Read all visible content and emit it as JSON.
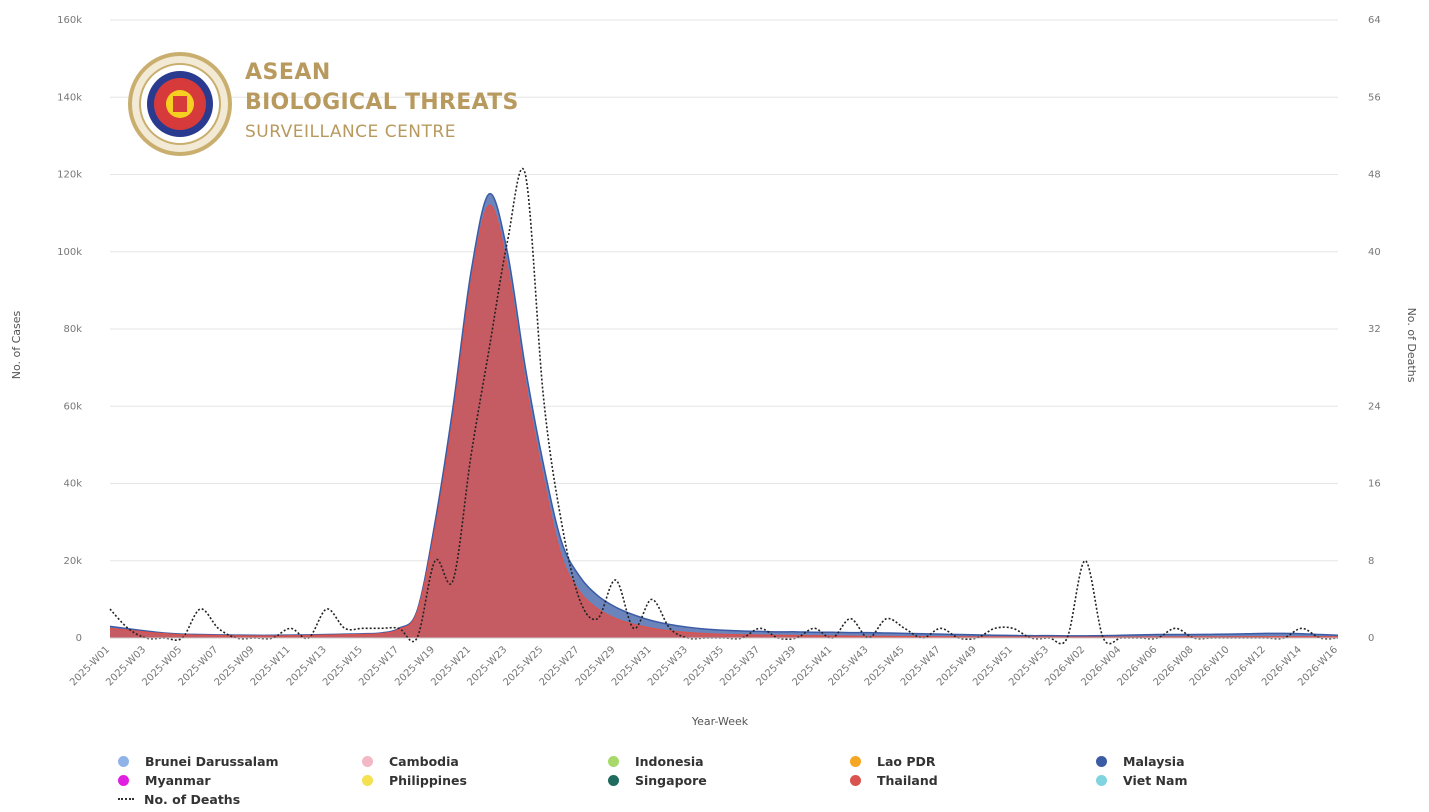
{
  "chart_data": {
    "type": "area",
    "xlabel": "Year-Week",
    "ylabel": "No. of Cases",
    "y2label": "No. of Deaths",
    "ylim": [
      0,
      160000
    ],
    "y2lim": [
      0,
      64
    ],
    "y_ticks": [
      "0",
      "20k",
      "40k",
      "60k",
      "80k",
      "100k",
      "120k",
      "140k",
      "160k"
    ],
    "y2_ticks": [
      "0",
      "8",
      "16",
      "24",
      "32",
      "40",
      "48",
      "56",
      "64"
    ],
    "grid": true,
    "legend_position": "bottom",
    "categories": [
      "2025-W01",
      "2025-W02",
      "2025-W03",
      "2025-W04",
      "2025-W05",
      "2025-W06",
      "2025-W07",
      "2025-W08",
      "2025-W09",
      "2025-W10",
      "2025-W11",
      "2025-W12",
      "2025-W13",
      "2025-W14",
      "2025-W15",
      "2025-W16",
      "2025-W17",
      "2025-W18",
      "2025-W19",
      "2025-W20",
      "2025-W21",
      "2025-W22",
      "2025-W23",
      "2025-W24",
      "2025-W25",
      "2025-W26",
      "2025-W27",
      "2025-W28",
      "2025-W29",
      "2025-W30",
      "2025-W31",
      "2025-W32",
      "2025-W33",
      "2025-W34",
      "2025-W35",
      "2025-W36",
      "2025-W37",
      "2025-W38",
      "2025-W39",
      "2025-W40",
      "2025-W41",
      "2025-W42",
      "2025-W43",
      "2025-W44",
      "2025-W45",
      "2025-W46",
      "2025-W47",
      "2025-W48",
      "2025-W49",
      "2025-W50",
      "2025-W51",
      "2025-W52",
      "2025-W53",
      "2026-W01",
      "2026-W02",
      "2026-W03",
      "2026-W04",
      "2026-W05",
      "2026-W06",
      "2026-W07",
      "2026-W08",
      "2026-W09",
      "2026-W10",
      "2026-W11",
      "2026-W12",
      "2026-W13",
      "2026-W14",
      "2026-W15",
      "2026-W16"
    ],
    "tick_labels_shown": [
      "2025-W01",
      "2025-W03",
      "2025-W05",
      "2025-W07",
      "2025-W09",
      "2025-W11",
      "2025-W13",
      "2025-W15",
      "2025-W17",
      "2025-W19",
      "2025-W21",
      "2025-W23",
      "2025-W25",
      "2025-W27",
      "2025-W29",
      "2025-W31",
      "2025-W33",
      "2025-W35",
      "2025-W37",
      "2025-W39",
      "2025-W41",
      "2025-W43",
      "2025-W45",
      "2025-W47",
      "2025-W49",
      "2025-W51",
      "2025-W53",
      "2026-W02",
      "2026-W04",
      "2026-W06",
      "2026-W08",
      "2026-W10",
      "2026-W12",
      "2026-W14",
      "2026-W16"
    ],
    "series": [
      {
        "name": "Malaysia",
        "color": "#3b5ba5",
        "axis": "cases",
        "values": [
          3000,
          2400,
          1800,
          1300,
          1000,
          900,
          800,
          750,
          700,
          700,
          750,
          800,
          900,
          1000,
          1100,
          1300,
          2500,
          7000,
          30000,
          60000,
          95000,
          115000,
          100000,
          70000,
          45000,
          25000,
          16000,
          11000,
          8000,
          6000,
          4500,
          3500,
          2800,
          2300,
          2000,
          1800,
          1700,
          1600,
          1600,
          1500,
          1500,
          1400,
          1400,
          1300,
          1200,
          1100,
          1000,
          900,
          800,
          700,
          650,
          600,
          600,
          550,
          550,
          600,
          700,
          800,
          900,
          900,
          900,
          950,
          1000,
          1100,
          1200,
          1200,
          1100,
          900,
          700
        ]
      },
      {
        "name": "Thailand",
        "color": "#d9534f",
        "axis": "cases",
        "values": [
          2500,
          2000,
          1500,
          1100,
          800,
          700,
          600,
          550,
          500,
          500,
          550,
          600,
          700,
          800,
          900,
          1100,
          2200,
          6500,
          28000,
          57000,
          92000,
          112000,
          96000,
          66000,
          41000,
          21000,
          12000,
          7500,
          5000,
          3500,
          2500,
          1800,
          1400,
          1100,
          900,
          800,
          700,
          650,
          600,
          550,
          500,
          450,
          400,
          380,
          350,
          330,
          300,
          280,
          260,
          250,
          240,
          230,
          220,
          210,
          200,
          200,
          210,
          220,
          230,
          240,
          250,
          260,
          270,
          280,
          290,
          300,
          300,
          290,
          280
        ]
      }
    ],
    "deaths": {
      "name": "No. of Deaths",
      "axis": "deaths",
      "style": "dotted",
      "values": [
        3,
        1,
        0,
        0,
        0,
        3,
        1,
        0,
        0,
        0,
        1,
        0,
        3,
        1,
        1,
        1,
        1,
        0,
        8,
        6,
        19,
        30,
        41,
        48,
        25,
        12,
        4,
        2,
        6,
        1,
        4,
        1,
        0,
        0,
        0,
        0,
        1,
        0,
        0,
        1,
        0,
        2,
        0,
        2,
        1,
        0,
        1,
        0,
        0,
        1,
        1,
        0,
        0,
        0,
        8,
        0,
        0,
        0,
        0,
        1,
        0,
        0,
        0,
        0,
        0,
        0,
        1,
        0,
        0
      ]
    },
    "legend": [
      {
        "name": "Brunei Darussalam",
        "color": "#8fb3e6"
      },
      {
        "name": "Cambodia",
        "color": "#f2b8c6"
      },
      {
        "name": "Indonesia",
        "color": "#a6d96a"
      },
      {
        "name": "Lao PDR",
        "color": "#f5a623"
      },
      {
        "name": "Malaysia",
        "color": "#3b5ba5"
      },
      {
        "name": "Myanmar",
        "color": "#e020e0"
      },
      {
        "name": "Philippines",
        "color": "#f5e050"
      },
      {
        "name": "Singapore",
        "color": "#1f6b5e"
      },
      {
        "name": "Thailand",
        "color": "#d9534f"
      },
      {
        "name": "Viet Nam",
        "color": "#7fd4e0"
      },
      {
        "name": "No. of Deaths",
        "color": "#333333",
        "dashed": true
      }
    ]
  },
  "logo": {
    "line1": "ASEAN",
    "line2": "BIOLOGICAL THREATS",
    "line3": "SURVEILLANCE CENTRE",
    "color": "#b89a5f"
  }
}
